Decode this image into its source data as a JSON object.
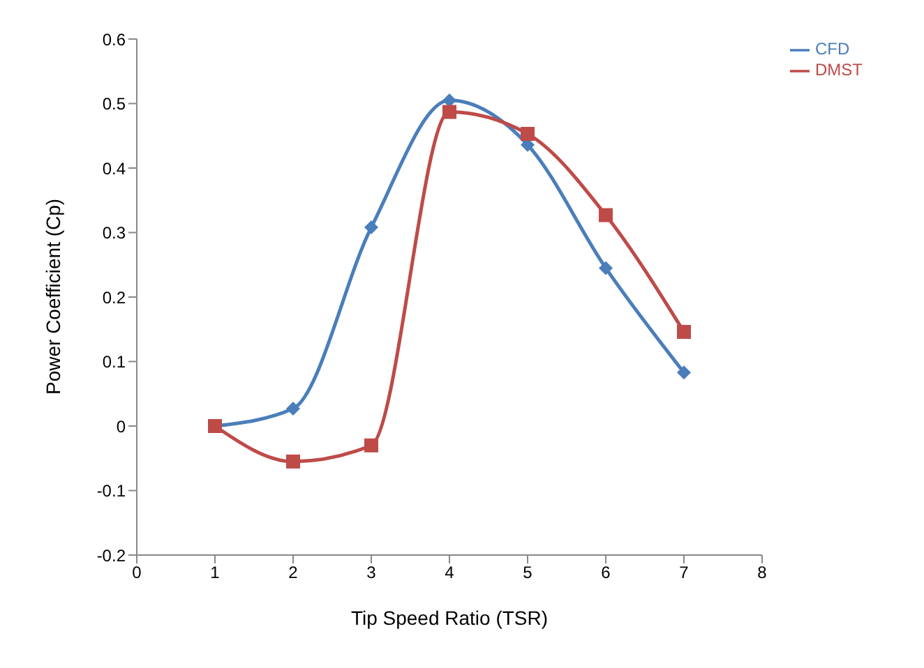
{
  "chart_data": {
    "type": "line",
    "xlabel": "Tip Speed Ratio (TSR)",
    "ylabel": "Power Coefficient (Cp)",
    "x": [
      1,
      2,
      3,
      4,
      5,
      6,
      7
    ],
    "series": [
      {
        "name": "CFD",
        "color": "#4a7ebb",
        "marker": "diamond",
        "values": [
          0,
          0.027,
          0.308,
          0.505,
          0.436,
          0.245,
          0.083
        ]
      },
      {
        "name": "DMST",
        "color": "#be4b48",
        "marker": "square",
        "values": [
          0,
          -0.055,
          -0.03,
          0.487,
          0.453,
          0.327,
          0.146
        ]
      }
    ],
    "xlim": [
      0,
      8
    ],
    "xticks": [
      0,
      1,
      2,
      3,
      4,
      5,
      6,
      7,
      8
    ],
    "ylim": [
      -0.2,
      0.6
    ],
    "yticks": [
      -0.2,
      -0.1,
      0,
      0.1,
      0.2,
      0.3,
      0.4,
      0.5,
      0.6
    ],
    "grid": false,
    "legend": "top right"
  }
}
